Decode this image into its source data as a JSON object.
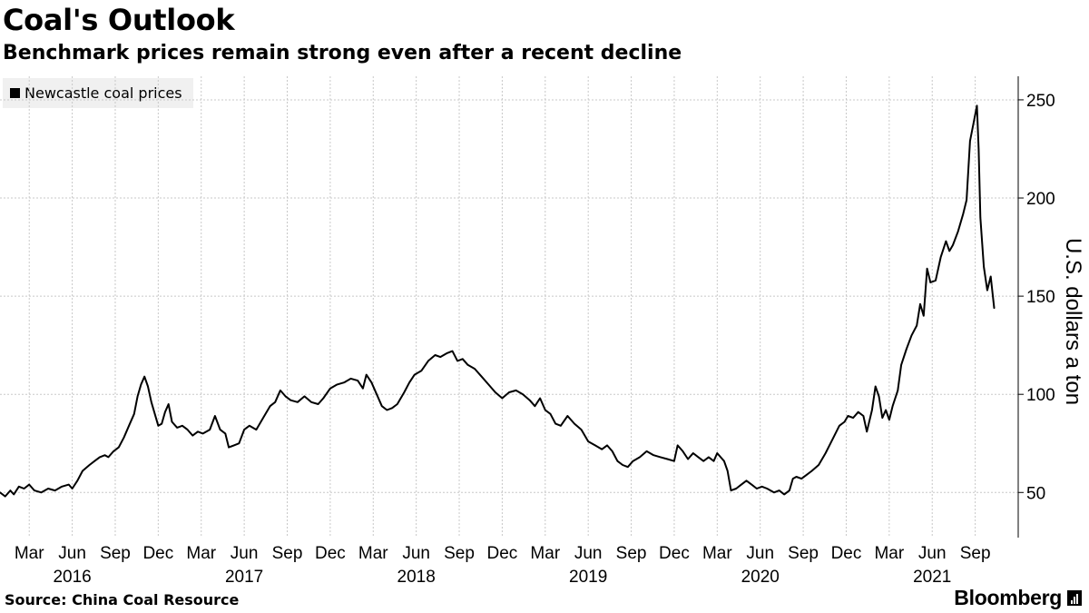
{
  "title": "Coal's Outlook",
  "subtitle": "Benchmark prices remain strong even after a recent decline",
  "legend_label": "Newcastle coal prices",
  "source": "Source: China Coal Resource",
  "brand": "Bloomberg",
  "colors": {
    "line": "#000000",
    "grid": "#c8c8c8",
    "legend_bg": "#f0f0f0"
  },
  "chart_data": {
    "type": "line",
    "title": "Coal's Outlook",
    "subtitle": "Benchmark prices remain strong even after a recent decline",
    "ylabel": "U.S. dollars a ton",
    "ylim": [
      27,
      262
    ],
    "y_ticks": [
      50,
      100,
      150,
      200,
      250
    ],
    "y_axis_side": "right",
    "grid": true,
    "legend_position": "top-left",
    "xlim": [
      2016.0,
      2021.92
    ],
    "x_ticks": [
      {
        "x": 2016.17,
        "label": "Mar"
      },
      {
        "x": 2016.42,
        "label": "Jun"
      },
      {
        "x": 2016.67,
        "label": "Sep"
      },
      {
        "x": 2016.92,
        "label": "Dec"
      },
      {
        "x": 2017.17,
        "label": "Mar"
      },
      {
        "x": 2017.42,
        "label": "Jun"
      },
      {
        "x": 2017.67,
        "label": "Sep"
      },
      {
        "x": 2017.92,
        "label": "Dec"
      },
      {
        "x": 2018.17,
        "label": "Mar"
      },
      {
        "x": 2018.42,
        "label": "Jun"
      },
      {
        "x": 2018.67,
        "label": "Sep"
      },
      {
        "x": 2018.92,
        "label": "Dec"
      },
      {
        "x": 2019.17,
        "label": "Mar"
      },
      {
        "x": 2019.42,
        "label": "Jun"
      },
      {
        "x": 2019.67,
        "label": "Sep"
      },
      {
        "x": 2019.92,
        "label": "Dec"
      },
      {
        "x": 2020.17,
        "label": "Mar"
      },
      {
        "x": 2020.42,
        "label": "Jun"
      },
      {
        "x": 2020.67,
        "label": "Sep"
      },
      {
        "x": 2020.92,
        "label": "Dec"
      },
      {
        "x": 2021.17,
        "label": "Mar"
      },
      {
        "x": 2021.42,
        "label": "Jun"
      },
      {
        "x": 2021.67,
        "label": "Sep"
      }
    ],
    "year_labels": [
      {
        "x": 2016.42,
        "label": "2016"
      },
      {
        "x": 2017.42,
        "label": "2017"
      },
      {
        "x": 2018.42,
        "label": "2018"
      },
      {
        "x": 2019.42,
        "label": "2019"
      },
      {
        "x": 2020.42,
        "label": "2020"
      },
      {
        "x": 2021.42,
        "label": "2021"
      }
    ],
    "series": [
      {
        "name": "Newcastle coal prices",
        "points": [
          [
            2016.0,
            50
          ],
          [
            2016.03,
            48
          ],
          [
            2016.06,
            51
          ],
          [
            2016.08,
            49
          ],
          [
            2016.11,
            53
          ],
          [
            2016.14,
            52
          ],
          [
            2016.17,
            54
          ],
          [
            2016.2,
            51
          ],
          [
            2016.24,
            50
          ],
          [
            2016.28,
            52
          ],
          [
            2016.32,
            51
          ],
          [
            2016.36,
            53
          ],
          [
            2016.4,
            54
          ],
          [
            2016.42,
            52
          ],
          [
            2016.45,
            56
          ],
          [
            2016.48,
            61
          ],
          [
            2016.52,
            64
          ],
          [
            2016.55,
            66
          ],
          [
            2016.58,
            68
          ],
          [
            2016.61,
            69
          ],
          [
            2016.63,
            68
          ],
          [
            2016.66,
            71
          ],
          [
            2016.69,
            73
          ],
          [
            2016.72,
            78
          ],
          [
            2016.75,
            84
          ],
          [
            2016.78,
            90
          ],
          [
            2016.8,
            99
          ],
          [
            2016.82,
            105
          ],
          [
            2016.84,
            109
          ],
          [
            2016.86,
            104
          ],
          [
            2016.88,
            96
          ],
          [
            2016.9,
            90
          ],
          [
            2016.92,
            84
          ],
          [
            2016.94,
            85
          ],
          [
            2016.96,
            91
          ],
          [
            2016.98,
            95
          ],
          [
            2017.0,
            86
          ],
          [
            2017.03,
            83
          ],
          [
            2017.06,
            84
          ],
          [
            2017.09,
            82
          ],
          [
            2017.12,
            79
          ],
          [
            2017.15,
            81
          ],
          [
            2017.18,
            80
          ],
          [
            2017.22,
            82
          ],
          [
            2017.25,
            89
          ],
          [
            2017.28,
            82
          ],
          [
            2017.31,
            80
          ],
          [
            2017.33,
            73
          ],
          [
            2017.36,
            74
          ],
          [
            2017.39,
            75
          ],
          [
            2017.42,
            82
          ],
          [
            2017.45,
            84
          ],
          [
            2017.49,
            82
          ],
          [
            2017.53,
            88
          ],
          [
            2017.57,
            94
          ],
          [
            2017.6,
            96
          ],
          [
            2017.63,
            102
          ],
          [
            2017.66,
            99
          ],
          [
            2017.69,
            97
          ],
          [
            2017.73,
            96
          ],
          [
            2017.77,
            99
          ],
          [
            2017.81,
            96
          ],
          [
            2017.85,
            95
          ],
          [
            2017.88,
            98
          ],
          [
            2017.92,
            103
          ],
          [
            2017.96,
            105
          ],
          [
            2018.0,
            106
          ],
          [
            2018.04,
            108
          ],
          [
            2018.08,
            107
          ],
          [
            2018.11,
            103
          ],
          [
            2018.13,
            110
          ],
          [
            2018.16,
            106
          ],
          [
            2018.19,
            100
          ],
          [
            2018.22,
            94
          ],
          [
            2018.25,
            92
          ],
          [
            2018.28,
            93
          ],
          [
            2018.31,
            95
          ],
          [
            2018.35,
            101
          ],
          [
            2018.38,
            106
          ],
          [
            2018.41,
            110
          ],
          [
            2018.45,
            112
          ],
          [
            2018.49,
            117
          ],
          [
            2018.53,
            120
          ],
          [
            2018.56,
            119
          ],
          [
            2018.6,
            121
          ],
          [
            2018.63,
            122
          ],
          [
            2018.66,
            117
          ],
          [
            2018.69,
            118
          ],
          [
            2018.72,
            115
          ],
          [
            2018.76,
            113
          ],
          [
            2018.8,
            109
          ],
          [
            2018.84,
            105
          ],
          [
            2018.88,
            101
          ],
          [
            2018.92,
            98
          ],
          [
            2018.96,
            101
          ],
          [
            2019.0,
            102
          ],
          [
            2019.04,
            100
          ],
          [
            2019.08,
            97
          ],
          [
            2019.11,
            94
          ],
          [
            2019.14,
            98
          ],
          [
            2019.17,
            92
          ],
          [
            2019.2,
            90
          ],
          [
            2019.23,
            85
          ],
          [
            2019.26,
            84
          ],
          [
            2019.3,
            89
          ],
          [
            2019.34,
            85
          ],
          [
            2019.38,
            82
          ],
          [
            2019.42,
            76
          ],
          [
            2019.46,
            74
          ],
          [
            2019.5,
            72
          ],
          [
            2019.53,
            74
          ],
          [
            2019.56,
            71
          ],
          [
            2019.59,
            66
          ],
          [
            2019.62,
            64
          ],
          [
            2019.65,
            63
          ],
          [
            2019.68,
            66
          ],
          [
            2019.72,
            68
          ],
          [
            2019.76,
            71
          ],
          [
            2019.8,
            69
          ],
          [
            2019.84,
            68
          ],
          [
            2019.88,
            67
          ],
          [
            2019.92,
            66
          ],
          [
            2019.94,
            74
          ],
          [
            2019.97,
            71
          ],
          [
            2020.0,
            67
          ],
          [
            2020.03,
            70
          ],
          [
            2020.06,
            68
          ],
          [
            2020.09,
            66
          ],
          [
            2020.12,
            68
          ],
          [
            2020.15,
            66
          ],
          [
            2020.17,
            70
          ],
          [
            2020.19,
            68
          ],
          [
            2020.21,
            66
          ],
          [
            2020.23,
            61
          ],
          [
            2020.25,
            51
          ],
          [
            2020.28,
            52
          ],
          [
            2020.31,
            54
          ],
          [
            2020.34,
            56
          ],
          [
            2020.37,
            54
          ],
          [
            2020.4,
            52
          ],
          [
            2020.43,
            53
          ],
          [
            2020.46,
            52
          ],
          [
            2020.5,
            50
          ],
          [
            2020.53,
            51
          ],
          [
            2020.56,
            49
          ],
          [
            2020.59,
            51
          ],
          [
            2020.61,
            57
          ],
          [
            2020.63,
            58
          ],
          [
            2020.66,
            57
          ],
          [
            2020.69,
            59
          ],
          [
            2020.72,
            61
          ],
          [
            2020.76,
            64
          ],
          [
            2020.8,
            70
          ],
          [
            2020.84,
            77
          ],
          [
            2020.88,
            84
          ],
          [
            2020.91,
            86
          ],
          [
            2020.93,
            89
          ],
          [
            2020.96,
            88
          ],
          [
            2020.99,
            91
          ],
          [
            2021.02,
            89
          ],
          [
            2021.04,
            81
          ],
          [
            2021.07,
            92
          ],
          [
            2021.09,
            104
          ],
          [
            2021.11,
            99
          ],
          [
            2021.13,
            88
          ],
          [
            2021.15,
            92
          ],
          [
            2021.17,
            87
          ],
          [
            2021.19,
            94
          ],
          [
            2021.22,
            102
          ],
          [
            2021.24,
            115
          ],
          [
            2021.27,
            123
          ],
          [
            2021.3,
            130
          ],
          [
            2021.33,
            135
          ],
          [
            2021.35,
            146
          ],
          [
            2021.37,
            140
          ],
          [
            2021.39,
            164
          ],
          [
            2021.41,
            157
          ],
          [
            2021.44,
            158
          ],
          [
            2021.47,
            170
          ],
          [
            2021.5,
            178
          ],
          [
            2021.52,
            173
          ],
          [
            2021.54,
            176
          ],
          [
            2021.57,
            183
          ],
          [
            2021.6,
            192
          ],
          [
            2021.62,
            199
          ],
          [
            2021.64,
            229
          ],
          [
            2021.66,
            238
          ],
          [
            2021.68,
            247
          ],
          [
            2021.69,
            225
          ],
          [
            2021.7,
            190
          ],
          [
            2021.72,
            165
          ],
          [
            2021.74,
            153
          ],
          [
            2021.76,
            160
          ],
          [
            2021.78,
            144
          ]
        ]
      }
    ]
  }
}
